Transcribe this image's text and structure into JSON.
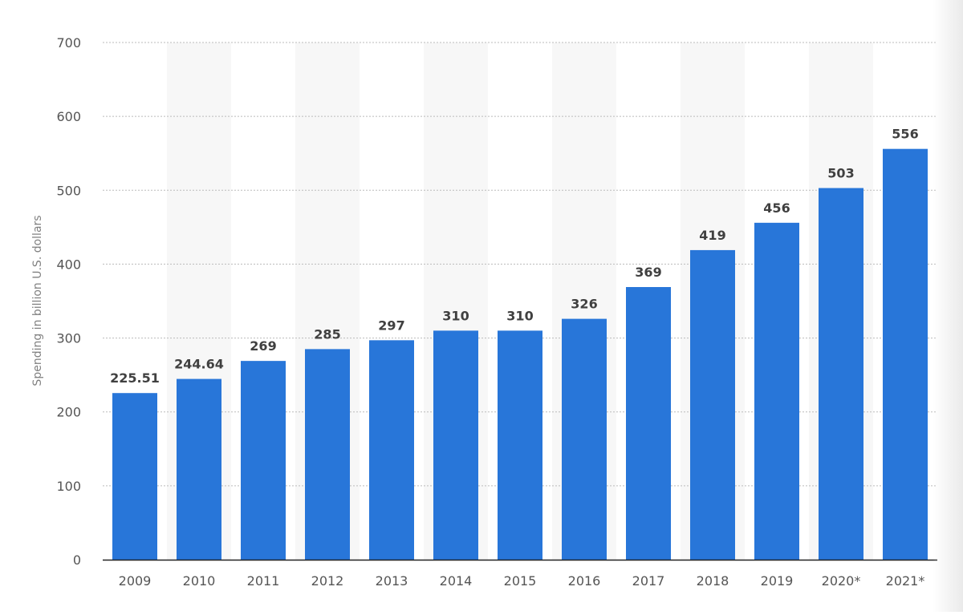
{
  "chart_data": {
    "type": "bar",
    "categories": [
      "2009",
      "2010",
      "2011",
      "2012",
      "2013",
      "2014",
      "2015",
      "2016",
      "2017",
      "2018",
      "2019",
      "2020*",
      "2021*"
    ],
    "values": [
      225.51,
      244.64,
      269,
      285,
      297,
      310,
      310,
      326,
      369,
      419,
      456,
      503,
      556
    ],
    "value_labels": [
      "225.51",
      "244.64",
      "269",
      "285",
      "297",
      "310",
      "310",
      "326",
      "369",
      "419",
      "456",
      "503",
      "556"
    ],
    "title": "",
    "xlabel": "",
    "ylabel": "Spending in billion U.S. dollars",
    "ylim": [
      0,
      700
    ],
    "yticks": [
      "0",
      "100",
      "200",
      "300",
      "400",
      "500",
      "600",
      "700"
    ],
    "grid": true,
    "alternating_column_shading": true,
    "legend": "none",
    "bar_color": "#2876d9",
    "column_shade_color": "#f7f7f7",
    "gridline_color": "#bbbbbb"
  }
}
